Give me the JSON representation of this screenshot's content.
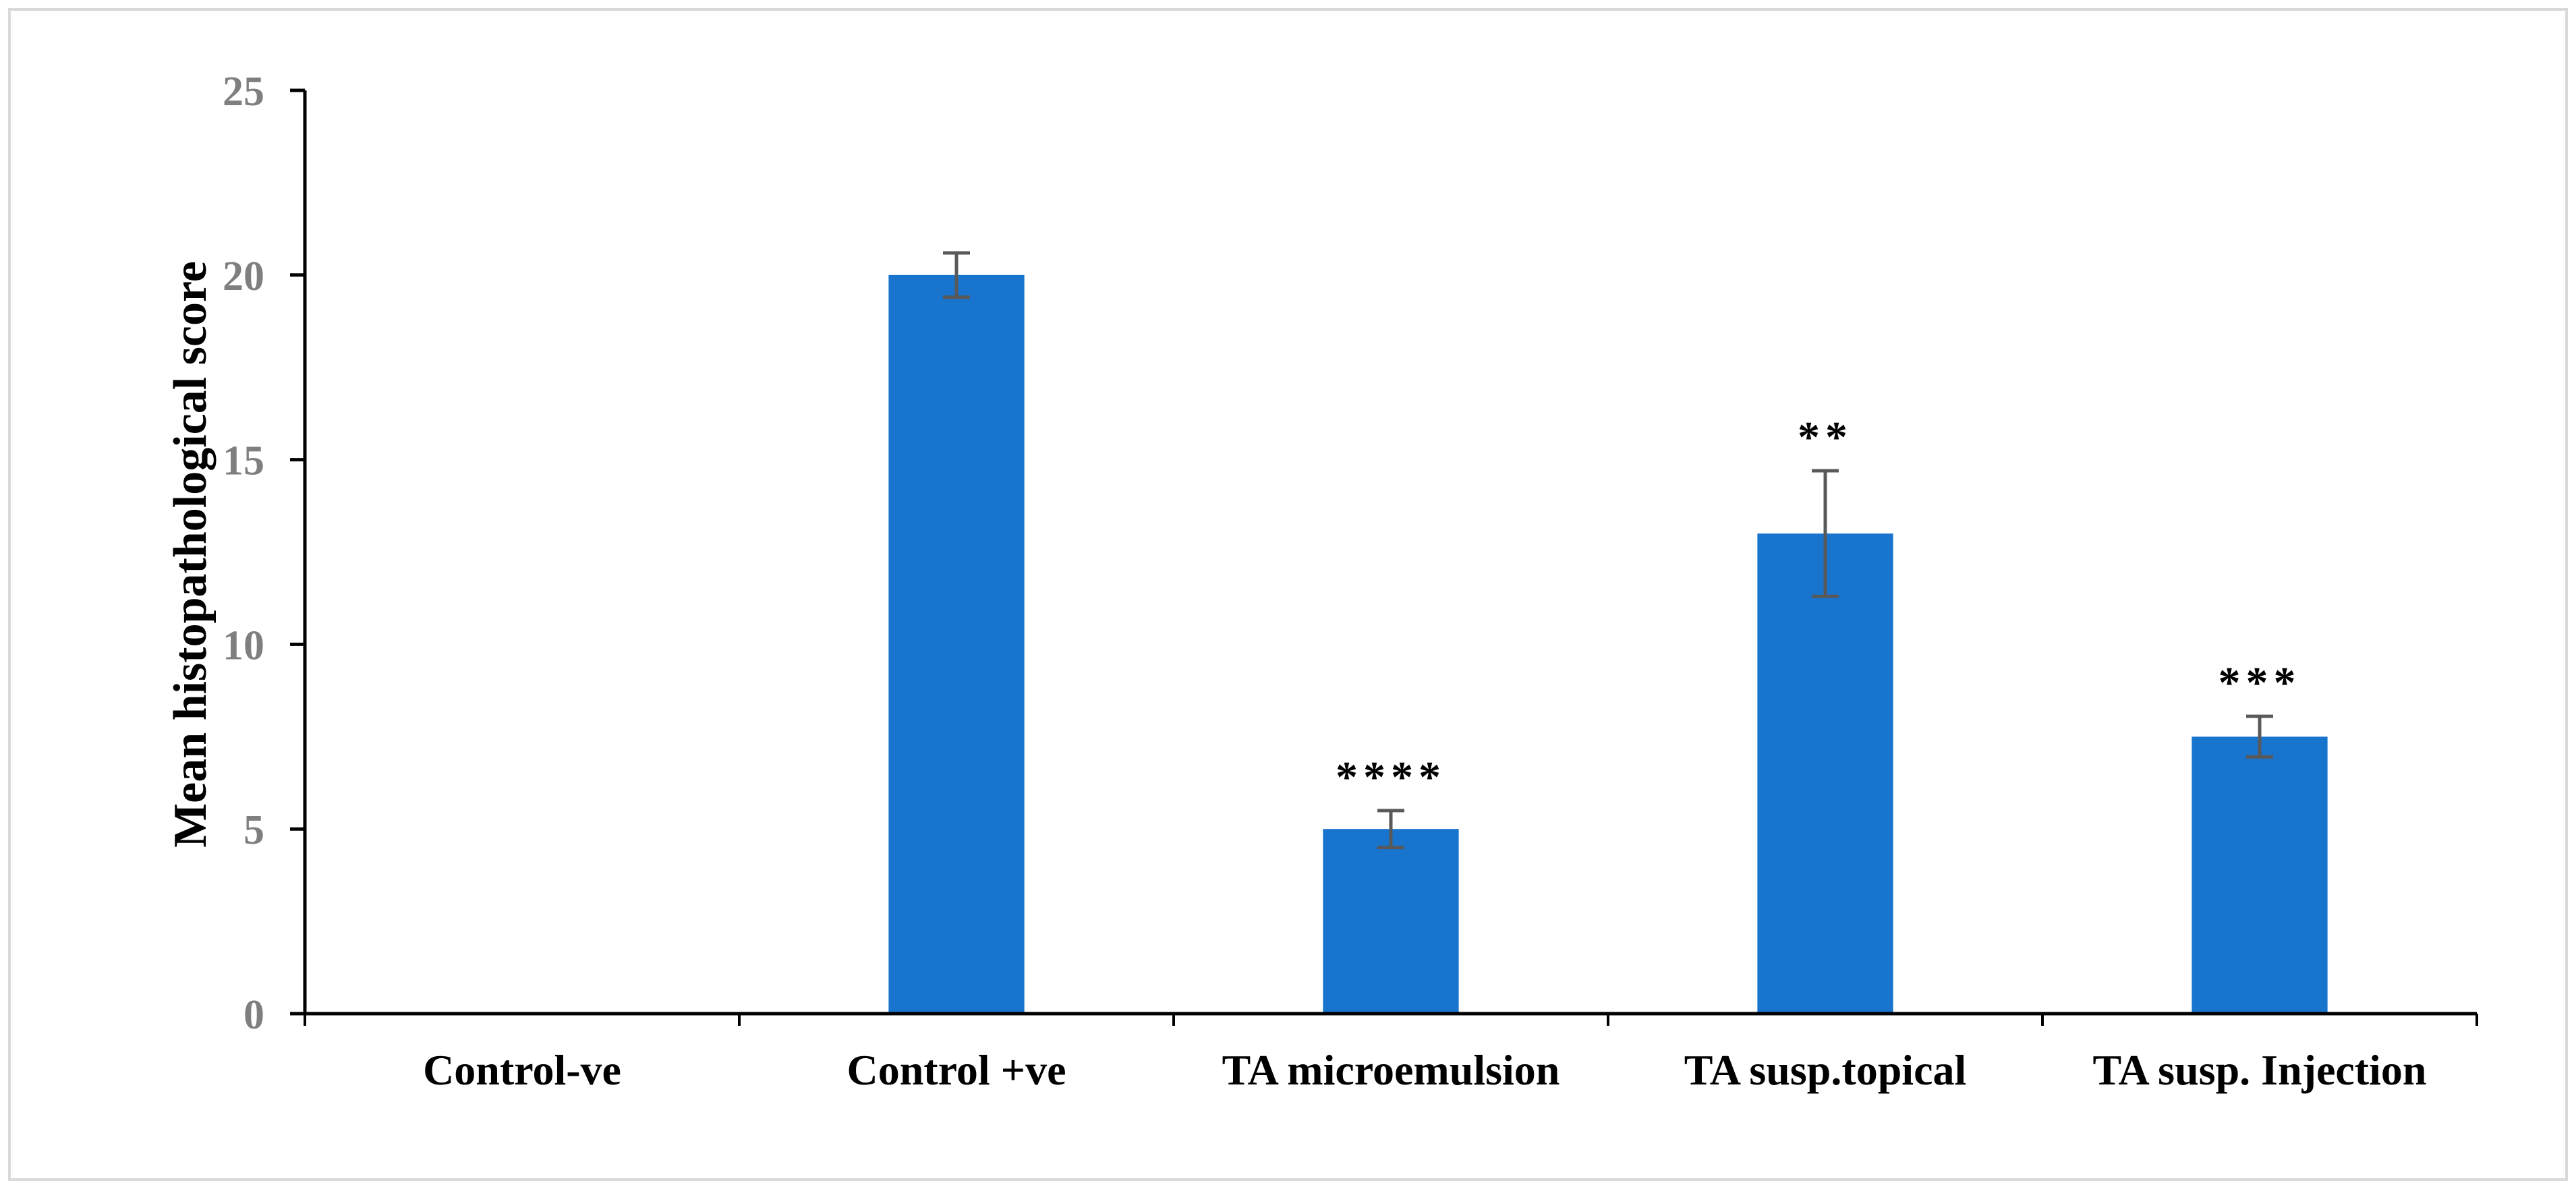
{
  "chart_data": {
    "type": "bar",
    "title": "",
    "xlabel": "",
    "ylabel": "Mean histopathological score",
    "ylim": [
      0,
      25
    ],
    "yticks": [
      0,
      5,
      10,
      15,
      20,
      25
    ],
    "grid": false,
    "legend": "none",
    "bar_color": "#1874CD",
    "axis_color": "#000000",
    "tick_label_color": "#7f7f7f",
    "error_bar_color": "#595959",
    "categories": [
      "Control-ve",
      "Control +ve",
      "TA microemulsion",
      "TA susp.topical",
      "TA susp. Injection"
    ],
    "values": [
      0,
      20,
      5,
      13,
      7.5
    ],
    "errors": [
      0,
      0.6,
      0.5,
      1.7,
      0.55
    ],
    "significance": [
      "",
      "",
      "****",
      "**",
      "***"
    ]
  }
}
